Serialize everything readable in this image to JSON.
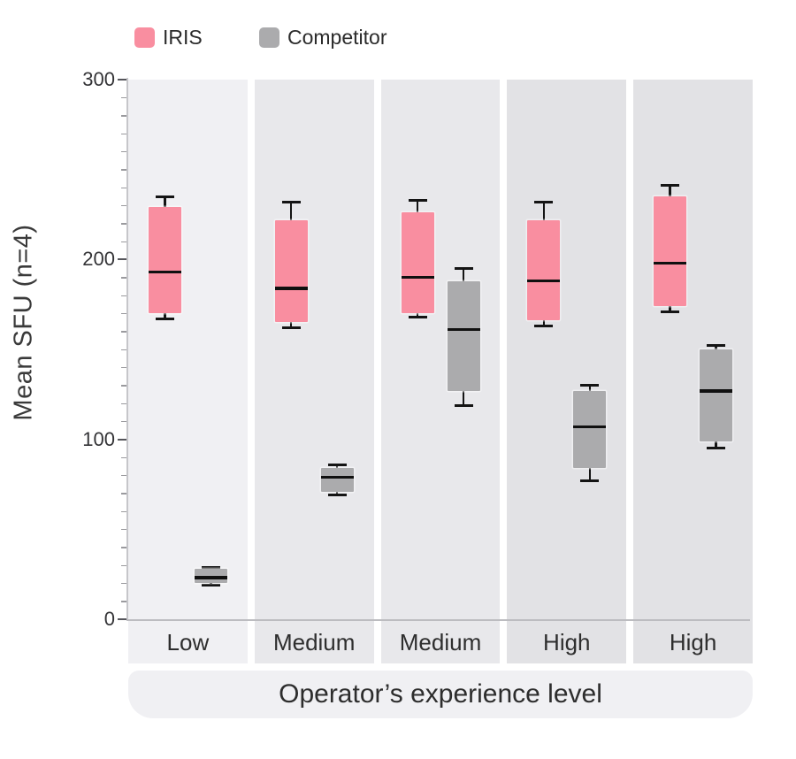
{
  "legend": {
    "items": [
      {
        "label": "IRIS",
        "color": "#f98ea0"
      },
      {
        "label": "Competitor",
        "color": "#ababad"
      }
    ]
  },
  "y_axis": {
    "title": "Mean SFU (n=4)",
    "min": 0,
    "max": 300,
    "major_ticks": [
      0,
      100,
      200,
      300
    ],
    "minor_step": 10
  },
  "x_axis": {
    "title": "Operator’s experience level"
  },
  "chart_data": {
    "type": "boxplot",
    "title": "",
    "xlabel": "Operator’s experience level",
    "ylabel": "Mean SFU (n=4)",
    "ylim": [
      0,
      300
    ],
    "grid": false,
    "legend_position": "top-left",
    "categories": [
      "Low",
      "Medium",
      "Medium",
      "High",
      "High"
    ],
    "panel_colors": [
      "#f0f0f3",
      "#e8e8eb",
      "#e8e8eb",
      "#e2e2e5",
      "#e2e2e5"
    ],
    "series": [
      {
        "name": "IRIS",
        "color": "#f98ea0",
        "boxes": [
          {
            "whisker_low": 167,
            "q1": 170,
            "median": 193,
            "q3": 229,
            "whisker_high": 235
          },
          {
            "whisker_low": 162,
            "q1": 165,
            "median": 184,
            "q3": 222,
            "whisker_high": 232
          },
          {
            "whisker_low": 168,
            "q1": 170,
            "median": 190,
            "q3": 226,
            "whisker_high": 233
          },
          {
            "whisker_low": 163,
            "q1": 166,
            "median": 188,
            "q3": 222,
            "whisker_high": 232
          },
          {
            "whisker_low": 171,
            "q1": 174,
            "median": 198,
            "q3": 235,
            "whisker_high": 241
          }
        ]
      },
      {
        "name": "Competitor",
        "color": "#ababad",
        "boxes": [
          {
            "whisker_low": 19,
            "q1": 20,
            "median": 23,
            "q3": 28,
            "whisker_high": 29
          },
          {
            "whisker_low": 69,
            "q1": 71,
            "median": 79,
            "q3": 84,
            "whisker_high": 86
          },
          {
            "whisker_low": 119,
            "q1": 127,
            "median": 161,
            "q3": 188,
            "whisker_high": 195
          },
          {
            "whisker_low": 77,
            "q1": 84,
            "median": 107,
            "q3": 127,
            "whisker_high": 130
          },
          {
            "whisker_low": 95,
            "q1": 99,
            "median": 127,
            "q3": 150,
            "whisker_high": 152
          }
        ]
      }
    ]
  }
}
